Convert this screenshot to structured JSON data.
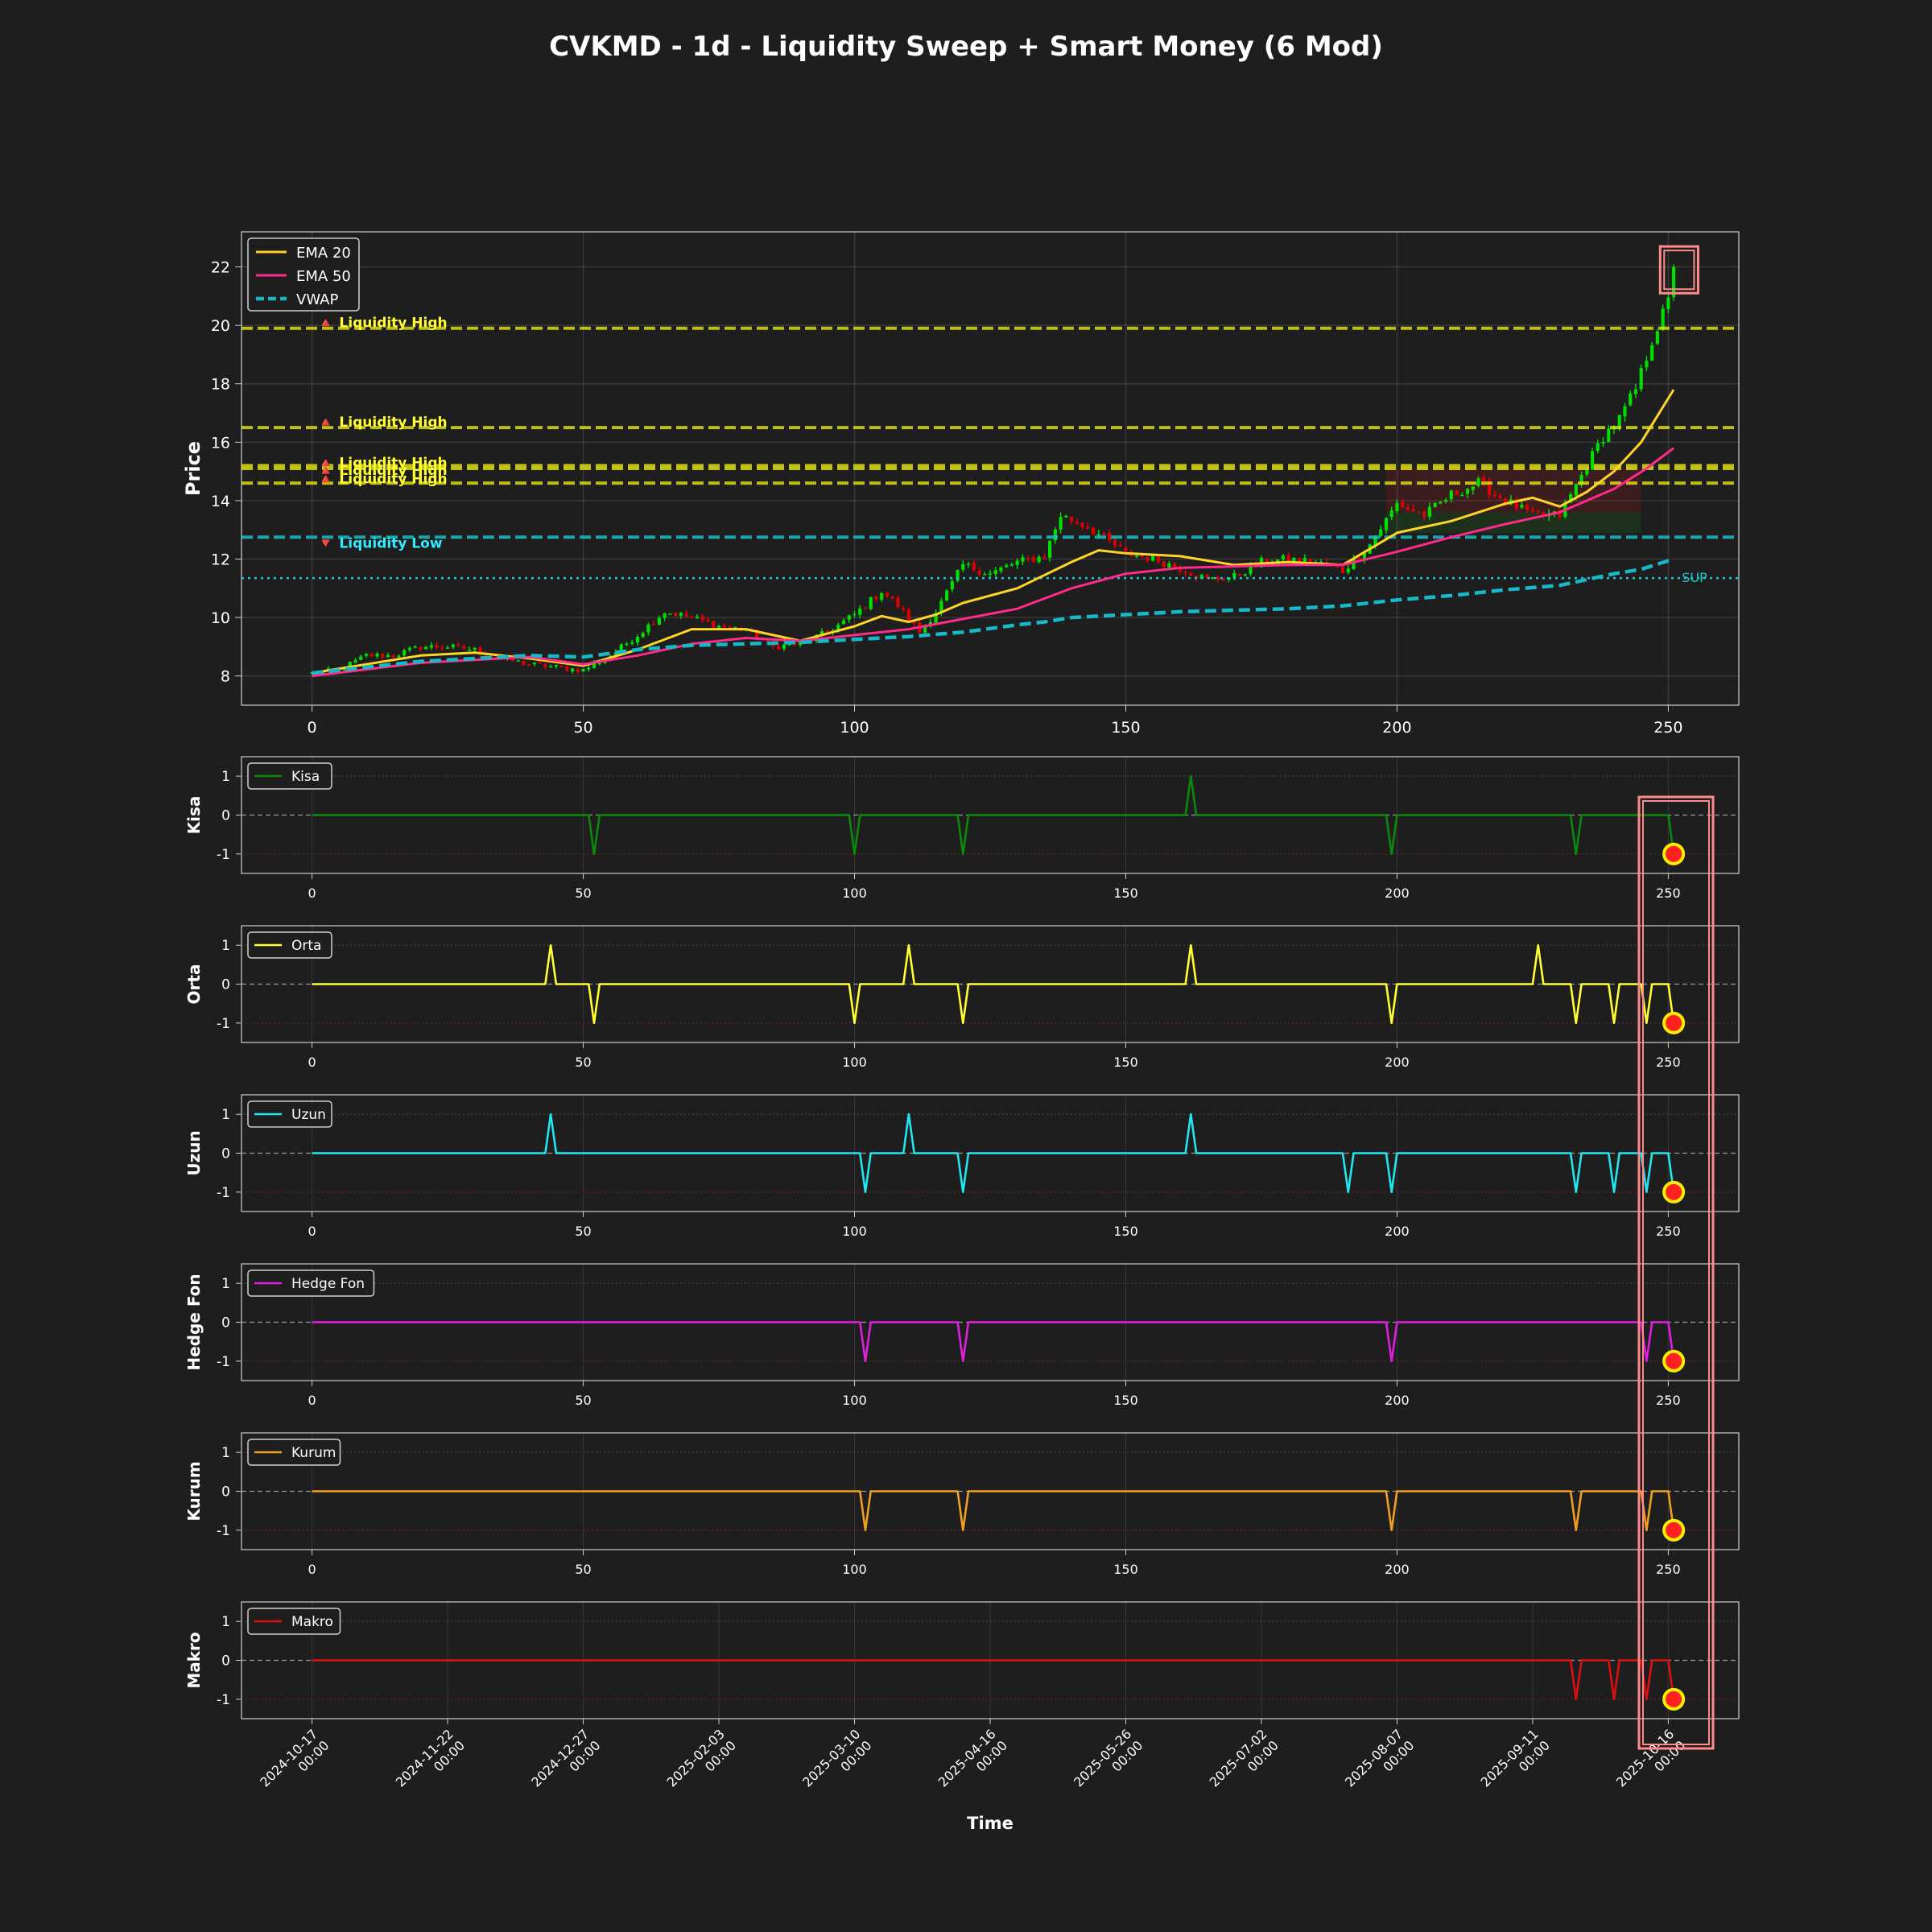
{
  "title": "CVKMD - 1d - Liquidity Sweep + Smart Money (6 Mod)",
  "colors": {
    "background": "#1e1e1e",
    "up_candle": "#00e000",
    "down_candle": "#e00000",
    "ema20": "#ffd42a",
    "ema50": "#ff2a8a",
    "vwap": "#17b8c8",
    "liquidity_high": "#e6e61a",
    "liquidity_low": "#19c8d2",
    "signal_marker": "#ff2020",
    "signal_ring": "#ffee00",
    "highlight_box": "#ff8a8a"
  },
  "chart_data": [
    {
      "type": "candlestick",
      "id": "price",
      "ylabel": "Price",
      "xlim": [
        -13,
        263
      ],
      "ylim": [
        7,
        23.2
      ],
      "yticks": [
        8,
        10,
        12,
        14,
        16,
        18,
        20,
        22
      ],
      "xticks": [
        0,
        50,
        100,
        150,
        200,
        250
      ],
      "legend": {
        "location": "top-left",
        "entries": [
          "EMA 20",
          "EMA 50",
          "VWAP"
        ]
      },
      "close_anchors": {
        "x": [
          0,
          5,
          10,
          15,
          20,
          25,
          30,
          35,
          40,
          45,
          50,
          55,
          60,
          65,
          70,
          75,
          80,
          85,
          90,
          95,
          100,
          105,
          108,
          112,
          115,
          120,
          125,
          130,
          135,
          138,
          143,
          150,
          155,
          160,
          165,
          170,
          175,
          180,
          185,
          190,
          195,
          200,
          205,
          210,
          215,
          220,
          225,
          230,
          235,
          238,
          241,
          244,
          247,
          250,
          251
        ],
        "close": [
          8.1,
          8.2,
          8.7,
          8.7,
          9.0,
          9.0,
          8.9,
          8.6,
          8.4,
          8.3,
          8.2,
          8.7,
          9.4,
          10.2,
          10.0,
          9.7,
          9.6,
          9.0,
          9.1,
          9.5,
          10.1,
          10.9,
          10.4,
          9.5,
          10.2,
          11.8,
          11.5,
          11.9,
          12.1,
          13.5,
          13.1,
          12.2,
          12.0,
          11.7,
          11.3,
          11.4,
          11.9,
          12.0,
          11.9,
          11.6,
          12.5,
          13.9,
          13.5,
          14.2,
          14.6,
          14.0,
          13.5,
          13.5,
          15.2,
          16.2,
          16.8,
          17.8,
          19.5,
          20.8,
          22.0
        ]
      },
      "indicators": [
        {
          "name": "EMA 20",
          "x": [
            0,
            10,
            20,
            30,
            40,
            50,
            60,
            70,
            80,
            90,
            100,
            105,
            110,
            115,
            120,
            130,
            140,
            145,
            150,
            160,
            170,
            180,
            190,
            200,
            210,
            220,
            225,
            230,
            235,
            240,
            245,
            251
          ],
          "y": [
            8.1,
            8.4,
            8.7,
            8.8,
            8.6,
            8.35,
            8.9,
            9.6,
            9.6,
            9.2,
            9.7,
            10.05,
            9.85,
            10.1,
            10.5,
            11.0,
            11.9,
            12.3,
            12.2,
            12.1,
            11.8,
            11.9,
            11.8,
            12.9,
            13.3,
            13.9,
            14.1,
            13.8,
            14.3,
            15.0,
            16.0,
            17.8
          ]
        },
        {
          "name": "EMA 50",
          "x": [
            0,
            20,
            40,
            50,
            60,
            70,
            80,
            90,
            100,
            110,
            120,
            130,
            140,
            150,
            160,
            170,
            180,
            190,
            200,
            210,
            220,
            230,
            240,
            246,
            251
          ],
          "y": [
            8.0,
            8.45,
            8.65,
            8.4,
            8.7,
            9.1,
            9.3,
            9.2,
            9.4,
            9.6,
            9.95,
            10.3,
            11.0,
            11.5,
            11.7,
            11.75,
            11.8,
            11.8,
            12.25,
            12.75,
            13.2,
            13.6,
            14.4,
            15.1,
            15.8
          ]
        },
        {
          "name": "VWAP",
          "x": [
            0,
            20,
            40,
            50,
            60,
            70,
            80,
            90,
            100,
            110,
            120,
            130,
            135,
            140,
            150,
            160,
            170,
            180,
            190,
            200,
            210,
            220,
            230,
            240,
            245,
            251
          ],
          "y": [
            8.1,
            8.5,
            8.7,
            8.65,
            8.9,
            9.05,
            9.1,
            9.15,
            9.25,
            9.35,
            9.5,
            9.75,
            9.85,
            10.0,
            10.1,
            10.2,
            10.25,
            10.3,
            10.4,
            10.6,
            10.75,
            10.95,
            11.1,
            11.5,
            11.65,
            12.0
          ]
        }
      ],
      "horizontal_levels": [
        {
          "label": "🔺 Liquidity High",
          "value": 19.9,
          "kind": "high",
          "label_value": 20.1
        },
        {
          "label": "🔺 Liquidity High",
          "value": 16.5,
          "kind": "high",
          "label_value": 16.7
        },
        {
          "label": "🔺 Liquidity High",
          "value": 15.2,
          "kind": "high",
          "label_value": 15.3
        },
        {
          "label": "🔺 Liquidity High",
          "value": 15.1,
          "kind": "high",
          "label_value": 15.05
        },
        {
          "label": "🔺 Liquidity High",
          "value": 14.6,
          "kind": "high",
          "label_value": 14.75
        },
        {
          "label": "🔻 Liquidity Low",
          "value": 12.75,
          "kind": "low",
          "label_value": 12.55
        }
      ],
      "support": {
        "label": "SUP",
        "value": 11.35
      },
      "highlight": {
        "x": [
          248.5,
          255.5
        ],
        "y": [
          21.1,
          22.7
        ]
      }
    },
    {
      "type": "line",
      "id": "kisa",
      "ylabel": "Kisa",
      "legend": "Kisa",
      "color": "#0a8a0a",
      "ylim": [
        -1.5,
        1.5
      ],
      "yticks": [
        1,
        0,
        -1
      ],
      "xticks": [
        0,
        50,
        100,
        150,
        200,
        250
      ],
      "spikes": [
        [
          52,
          -1
        ],
        [
          100,
          -1
        ],
        [
          120,
          -1
        ],
        [
          162,
          1
        ],
        [
          199,
          -1
        ],
        [
          233,
          -1
        ]
      ],
      "last_value": -1
    },
    {
      "type": "line",
      "id": "orta",
      "ylabel": "Orta",
      "legend": "Orta",
      "color": "#ffff33",
      "ylim": [
        -1.5,
        1.5
      ],
      "yticks": [
        1,
        0,
        -1
      ],
      "xticks": [
        0,
        50,
        100,
        150,
        200,
        250
      ],
      "spikes": [
        [
          44,
          1
        ],
        [
          52,
          -1
        ],
        [
          100,
          -1
        ],
        [
          110,
          1
        ],
        [
          120,
          -1
        ],
        [
          162,
          1
        ],
        [
          199,
          -1
        ],
        [
          226,
          1
        ],
        [
          233,
          -1
        ],
        [
          240,
          -1
        ],
        [
          246,
          -1
        ]
      ],
      "last_value": -1
    },
    {
      "type": "line",
      "id": "uzun",
      "ylabel": "Uzun",
      "legend": "Uzun",
      "color": "#22e6f0",
      "ylim": [
        -1.5,
        1.5
      ],
      "yticks": [
        1,
        0,
        -1
      ],
      "xticks": [
        0,
        50,
        100,
        150,
        200,
        250
      ],
      "spikes": [
        [
          44,
          1
        ],
        [
          102,
          -1
        ],
        [
          110,
          1
        ],
        [
          120,
          -1
        ],
        [
          162,
          1
        ],
        [
          191,
          -1
        ],
        [
          199,
          -1
        ],
        [
          233,
          -1
        ],
        [
          240,
          -1
        ],
        [
          246,
          -1
        ]
      ],
      "last_value": -1
    },
    {
      "type": "line",
      "id": "hedge",
      "ylabel": "Hedge Fon",
      "legend": "Hedge Fon",
      "color": "#e020e0",
      "ylim": [
        -1.5,
        1.5
      ],
      "yticks": [
        1,
        0,
        -1
      ],
      "xticks": [
        0,
        50,
        100,
        150,
        200,
        250
      ],
      "spikes": [
        [
          102,
          -1
        ],
        [
          120,
          -1
        ],
        [
          199,
          -1
        ],
        [
          246,
          -1
        ]
      ],
      "last_value": -1
    },
    {
      "type": "line",
      "id": "kurum",
      "ylabel": "Kurum",
      "legend": "Kurum",
      "color": "#f0a020",
      "ylim": [
        -1.5,
        1.5
      ],
      "yticks": [
        1,
        0,
        -1
      ],
      "xticks": [
        0,
        50,
        100,
        150,
        200,
        250
      ],
      "spikes": [
        [
          102,
          -1
        ],
        [
          120,
          -1
        ],
        [
          199,
          -1
        ],
        [
          233,
          -1
        ],
        [
          246,
          -1
        ]
      ],
      "last_value": -1
    },
    {
      "type": "line",
      "id": "makro",
      "ylabel": "Makro",
      "legend": "Makro",
      "color": "#e01010",
      "ylim": [
        -1.5,
        1.5
      ],
      "yticks": [
        1,
        0,
        -1
      ],
      "xlabel": "Time",
      "date_ticks": [
        {
          "x": 0,
          "date": "2024-10-17",
          "time": "00:00"
        },
        {
          "x": 25,
          "date": "2024-11-22",
          "time": "00:00"
        },
        {
          "x": 50,
          "date": "2024-12-27",
          "time": "00:00"
        },
        {
          "x": 75,
          "date": "2025-02-03",
          "time": "00:00"
        },
        {
          "x": 100,
          "date": "2025-03-10",
          "time": "00:00"
        },
        {
          "x": 125,
          "date": "2025-04-16",
          "time": "00:00"
        },
        {
          "x": 150,
          "date": "2025-05-26",
          "time": "00:00"
        },
        {
          "x": 175,
          "date": "2025-07-02",
          "time": "00:00"
        },
        {
          "x": 200,
          "date": "2025-08-07",
          "time": "00:00"
        },
        {
          "x": 225,
          "date": "2025-09-11",
          "time": "00:00"
        },
        {
          "x": 250,
          "date": "2025-10-16",
          "time": "00:00"
        }
      ],
      "spikes": [
        [
          233,
          -1
        ],
        [
          240,
          -1
        ],
        [
          246,
          -1
        ]
      ],
      "last_value": -1
    }
  ]
}
